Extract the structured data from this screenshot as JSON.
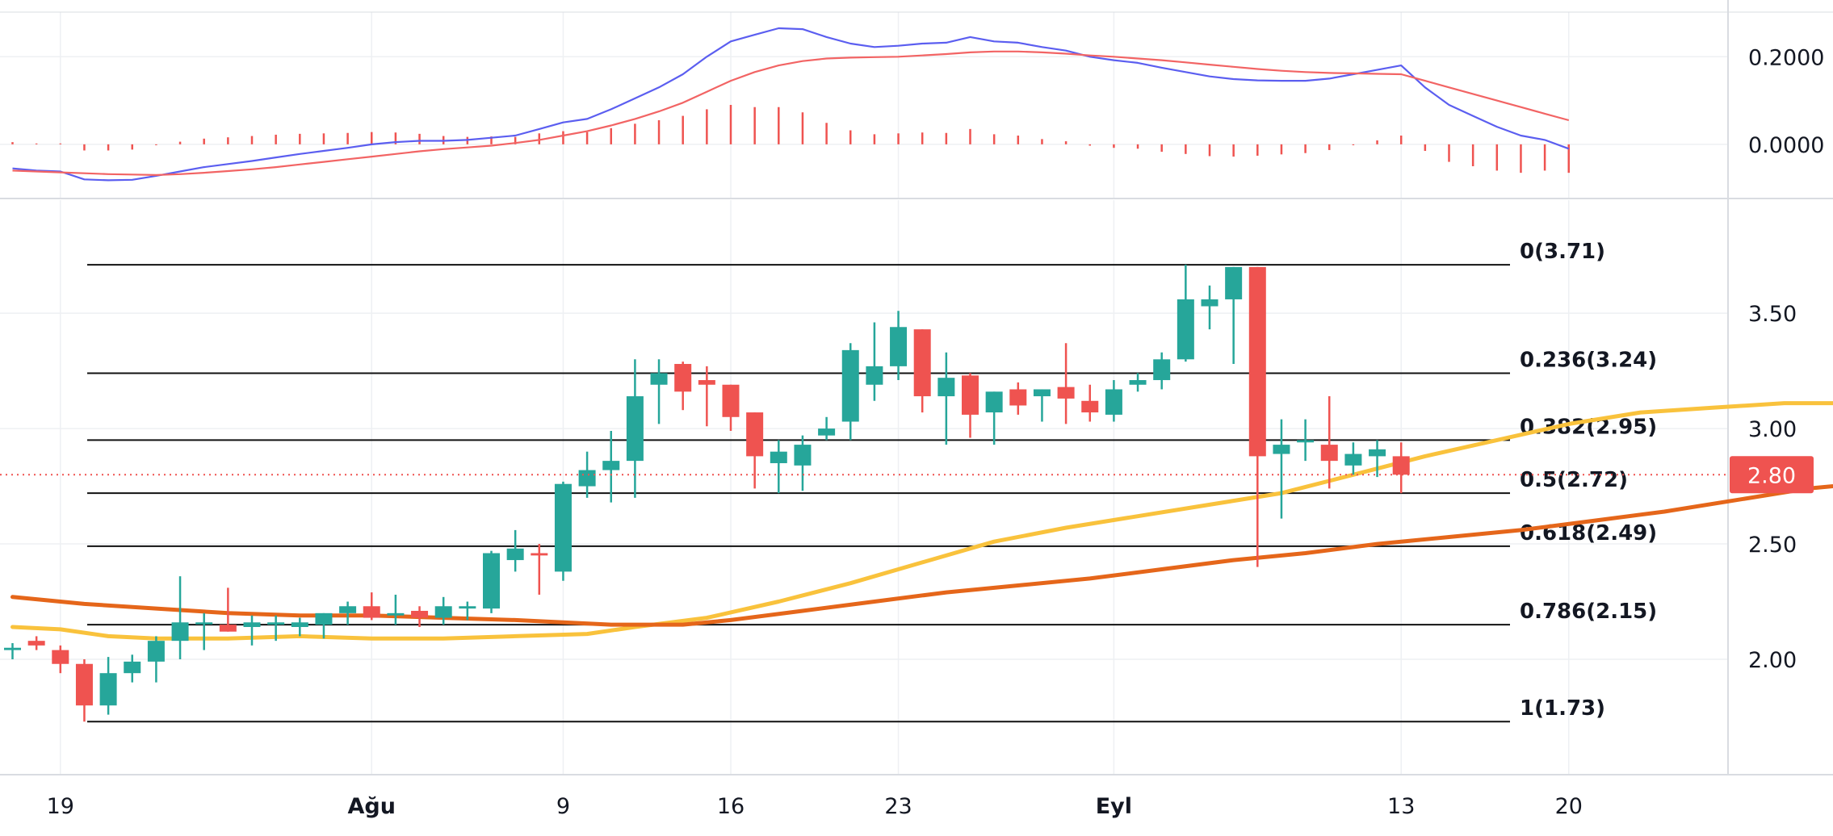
{
  "chart_data": [
    {
      "type": "line",
      "panel": "macd",
      "y_ticks": [
        "0.2000",
        "0.0000"
      ],
      "ylim": [
        -0.085,
        0.265
      ],
      "series": [
        {
          "key": "macd",
          "color": "#5b5ef0",
          "values": [
            -0.055,
            -0.06,
            -0.062,
            -0.08,
            -0.082,
            -0.081,
            -0.072,
            -0.062,
            -0.052,
            -0.045,
            -0.038,
            -0.03,
            -0.022,
            -0.015,
            -0.008,
            0.0,
            0.005,
            0.008,
            0.008,
            0.01,
            0.015,
            0.02,
            0.035,
            0.05,
            0.058,
            0.08,
            0.105,
            0.13,
            0.16,
            0.2,
            0.235,
            0.25,
            0.265,
            0.263,
            0.245,
            0.23,
            0.222,
            0.225,
            0.23,
            0.232,
            0.245,
            0.235,
            0.232,
            0.222,
            0.214,
            0.2,
            0.192,
            0.186,
            0.175,
            0.165,
            0.155,
            0.149,
            0.146,
            0.145,
            0.145,
            0.15,
            0.16,
            0.17,
            0.18,
            0.13,
            0.09,
            0.065,
            0.04,
            0.02,
            0.01,
            -0.01
          ]
        },
        {
          "key": "signal",
          "color": "#f26464",
          "values": [
            -0.06,
            -0.062,
            -0.064,
            -0.066,
            -0.068,
            -0.069,
            -0.07,
            -0.068,
            -0.065,
            -0.061,
            -0.057,
            -0.052,
            -0.046,
            -0.04,
            -0.034,
            -0.028,
            -0.022,
            -0.016,
            -0.011,
            -0.007,
            -0.003,
            0.003,
            0.01,
            0.02,
            0.03,
            0.043,
            0.058,
            0.075,
            0.095,
            0.12,
            0.145,
            0.165,
            0.18,
            0.19,
            0.196,
            0.198,
            0.199,
            0.2,
            0.203,
            0.206,
            0.21,
            0.212,
            0.212,
            0.21,
            0.207,
            0.203,
            0.2,
            0.196,
            0.192,
            0.187,
            0.182,
            0.177,
            0.172,
            0.168,
            0.165,
            0.163,
            0.162,
            0.161,
            0.16,
            0.145,
            0.13,
            0.115,
            0.1,
            0.085,
            0.07,
            0.055
          ]
        }
      ],
      "histogram": [
        0.005,
        0.002,
        0.002,
        -0.014,
        -0.014,
        -0.012,
        -0.002,
        0.006,
        0.013,
        0.016,
        0.019,
        0.022,
        0.024,
        0.025,
        0.026,
        0.028,
        0.027,
        0.024,
        0.019,
        0.017,
        0.018,
        0.017,
        0.025,
        0.03,
        0.028,
        0.037,
        0.047,
        0.055,
        0.065,
        0.08,
        0.09,
        0.085,
        0.085,
        0.073,
        0.049,
        0.032,
        0.023,
        0.025,
        0.027,
        0.026,
        0.035,
        0.023,
        0.02,
        0.012,
        0.007,
        -0.003,
        -0.008,
        -0.01,
        -0.017,
        -0.022,
        -0.027,
        -0.028,
        -0.026,
        -0.023,
        -0.02,
        -0.013,
        -0.002,
        0.009,
        0.02,
        -0.015,
        -0.04,
        -0.05,
        -0.06,
        -0.065,
        -0.06,
        -0.065
      ]
    },
    {
      "type": "candlestick",
      "panel": "price",
      "y_ticks": [
        "3.50",
        "3.00",
        "2.50",
        "2.00"
      ],
      "ylim": [
        1.5,
        3.99
      ],
      "ohlc": [
        [
          2.04,
          2.07,
          2.0,
          2.05
        ],
        [
          2.08,
          2.1,
          2.04,
          2.06
        ],
        [
          2.04,
          2.06,
          1.94,
          1.98
        ],
        [
          1.98,
          2.0,
          1.73,
          1.8
        ],
        [
          1.8,
          2.01,
          1.76,
          1.94
        ],
        [
          1.94,
          2.02,
          1.9,
          1.99
        ],
        [
          1.99,
          2.1,
          1.9,
          2.08
        ],
        [
          2.08,
          2.36,
          2.0,
          2.16
        ],
        [
          2.16,
          2.2,
          2.04,
          2.16
        ],
        [
          2.15,
          2.31,
          2.12,
          2.12
        ],
        [
          2.14,
          2.19,
          2.06,
          2.16
        ],
        [
          2.15,
          2.19,
          2.08,
          2.16
        ],
        [
          2.14,
          2.18,
          2.1,
          2.16
        ],
        [
          2.15,
          2.2,
          2.09,
          2.2
        ],
        [
          2.2,
          2.25,
          2.15,
          2.23
        ],
        [
          2.23,
          2.29,
          2.17,
          2.18
        ],
        [
          2.19,
          2.28,
          2.15,
          2.2
        ],
        [
          2.21,
          2.23,
          2.14,
          2.18
        ],
        [
          2.18,
          2.27,
          2.15,
          2.23
        ],
        [
          2.22,
          2.25,
          2.17,
          2.23
        ],
        [
          2.22,
          2.47,
          2.2,
          2.46
        ],
        [
          2.43,
          2.56,
          2.38,
          2.48
        ],
        [
          2.46,
          2.5,
          2.28,
          2.45
        ],
        [
          2.38,
          2.77,
          2.34,
          2.76
        ],
        [
          2.75,
          2.9,
          2.7,
          2.82
        ],
        [
          2.82,
          2.99,
          2.68,
          2.86
        ],
        [
          2.86,
          3.3,
          2.7,
          3.14
        ],
        [
          3.19,
          3.3,
          3.02,
          3.24
        ],
        [
          3.28,
          3.29,
          3.08,
          3.16
        ],
        [
          3.21,
          3.27,
          3.01,
          3.19
        ],
        [
          3.19,
          3.19,
          2.99,
          3.05
        ],
        [
          3.07,
          3.07,
          2.74,
          2.88
        ],
        [
          2.85,
          2.95,
          2.72,
          2.9
        ],
        [
          2.84,
          2.97,
          2.73,
          2.93
        ],
        [
          2.97,
          3.05,
          2.95,
          3.0
        ],
        [
          3.03,
          3.37,
          2.95,
          3.34
        ],
        [
          3.19,
          3.46,
          3.12,
          3.27
        ],
        [
          3.27,
          3.51,
          3.21,
          3.44
        ],
        [
          3.43,
          3.43,
          3.07,
          3.14
        ],
        [
          3.14,
          3.33,
          2.93,
          3.22
        ],
        [
          3.23,
          3.24,
          2.96,
          3.06
        ],
        [
          3.07,
          3.16,
          2.93,
          3.16
        ],
        [
          3.17,
          3.2,
          3.06,
          3.1
        ],
        [
          3.14,
          3.17,
          3.03,
          3.17
        ],
        [
          3.18,
          3.37,
          3.02,
          3.13
        ],
        [
          3.12,
          3.19,
          3.03,
          3.07
        ],
        [
          3.06,
          3.21,
          3.03,
          3.17
        ],
        [
          3.19,
          3.24,
          3.16,
          3.21
        ],
        [
          3.21,
          3.33,
          3.17,
          3.3
        ],
        [
          3.3,
          3.71,
          3.29,
          3.56
        ],
        [
          3.53,
          3.62,
          3.43,
          3.56
        ],
        [
          3.56,
          3.7,
          3.28,
          3.7
        ],
        [
          3.7,
          3.7,
          2.4,
          2.88
        ],
        [
          2.89,
          3.04,
          2.61,
          2.93
        ],
        [
          2.94,
          3.04,
          2.86,
          2.95
        ],
        [
          2.93,
          3.14,
          2.74,
          2.86
        ],
        [
          2.84,
          2.94,
          2.8,
          2.89
        ],
        [
          2.88,
          2.95,
          2.79,
          2.91
        ],
        [
          2.88,
          2.94,
          2.72,
          2.8
        ]
      ],
      "series": [
        {
          "key": "ma-short",
          "color": "#f9c23c",
          "points": [
            [
              -2,
              2.14
            ],
            [
              0,
              2.13
            ],
            [
              2,
              2.1
            ],
            [
              4,
              2.09
            ],
            [
              7,
              2.09
            ],
            [
              10,
              2.1
            ],
            [
              13,
              2.09
            ],
            [
              16,
              2.09
            ],
            [
              19,
              2.1
            ],
            [
              22,
              2.11
            ],
            [
              24,
              2.14
            ],
            [
              27,
              2.18
            ],
            [
              30,
              2.25
            ],
            [
              33,
              2.33
            ],
            [
              36,
              2.42
            ],
            [
              39,
              2.51
            ],
            [
              42,
              2.57
            ],
            [
              45,
              2.62
            ],
            [
              48,
              2.67
            ],
            [
              51,
              2.72
            ],
            [
              54,
              2.8
            ],
            [
              57,
              2.88
            ],
            [
              60,
              2.95
            ],
            [
              63,
              3.02
            ],
            [
              66,
              3.07
            ],
            [
              69,
              3.09
            ],
            [
              72,
              3.11
            ],
            [
              75,
              3.11
            ],
            [
              78,
              3.12
            ],
            [
              81,
              3.12
            ],
            [
              84,
              3.14
            ],
            [
              87,
              3.16
            ],
            [
              89,
              3.21
            ],
            [
              91,
              3.21
            ],
            [
              94,
              3.2
            ],
            [
              97,
              3.17
            ],
            [
              100,
              3.12
            ]
          ]
        },
        {
          "key": "ma-long",
          "color": "#e5661a",
          "points": [
            [
              -2,
              2.27
            ],
            [
              1,
              2.24
            ],
            [
              4,
              2.22
            ],
            [
              7,
              2.2
            ],
            [
              10,
              2.19
            ],
            [
              13,
              2.19
            ],
            [
              16,
              2.18
            ],
            [
              19,
              2.17
            ],
            [
              21,
              2.16
            ],
            [
              23,
              2.15
            ],
            [
              25,
              2.15
            ],
            [
              26,
              2.15
            ],
            [
              28,
              2.17
            ],
            [
              31,
              2.21
            ],
            [
              34,
              2.25
            ],
            [
              37,
              2.29
            ],
            [
              40,
              2.32
            ],
            [
              43,
              2.35
            ],
            [
              46,
              2.39
            ],
            [
              49,
              2.43
            ],
            [
              52,
              2.46
            ],
            [
              55,
              2.5
            ],
            [
              58,
              2.53
            ],
            [
              61,
              2.56
            ],
            [
              64,
              2.6
            ],
            [
              67,
              2.64
            ],
            [
              70,
              2.69
            ],
            [
              73,
              2.74
            ],
            [
              76,
              2.77
            ],
            [
              79,
              2.8
            ],
            [
              82,
              2.83
            ],
            [
              85,
              2.85
            ]
          ]
        }
      ],
      "fibonacci": {
        "levels": [
          {
            "ratio": "0",
            "price": 3.71,
            "label": "0(3.71)"
          },
          {
            "ratio": "0.236",
            "price": 3.24,
            "label": "0.236(3.24)"
          },
          {
            "ratio": "0.382",
            "price": 2.95,
            "label": "0.382(2.95)"
          },
          {
            "ratio": "0.5",
            "price": 2.72,
            "label": "0.5(2.72)"
          },
          {
            "ratio": "0.618",
            "price": 2.49,
            "label": "0.618(2.49)"
          },
          {
            "ratio": "0.786",
            "price": 2.15,
            "label": "0.786(2.15)"
          },
          {
            "ratio": "1",
            "price": 1.73,
            "label": "1(1.73)"
          }
        ]
      },
      "last_price": {
        "value": 2.8,
        "label": "2.80"
      }
    }
  ],
  "x_axis": {
    "ticks": [
      {
        "day": 0,
        "label": "19",
        "bold": false
      },
      {
        "day": 13,
        "label": "Ağu",
        "bold": true
      },
      {
        "day": 21,
        "label": "9",
        "bold": false
      },
      {
        "day": 28,
        "label": "16",
        "bold": false
      },
      {
        "day": 35,
        "label": "23",
        "bold": false
      },
      {
        "day": 44,
        "label": "Eyl",
        "bold": true
      },
      {
        "day": 56,
        "label": "13",
        "bold": false
      },
      {
        "day": 63,
        "label": "20",
        "bold": false
      }
    ]
  },
  "colors": {
    "up": "#26a69a",
    "down": "#ef5350",
    "grid": "#eef0f3",
    "separator": "#d9dce1",
    "axis_text": "#131722",
    "fib_line": "#111111",
    "price_tag_bg": "#ef5350",
    "price_tag_text": "#ffffff"
  }
}
